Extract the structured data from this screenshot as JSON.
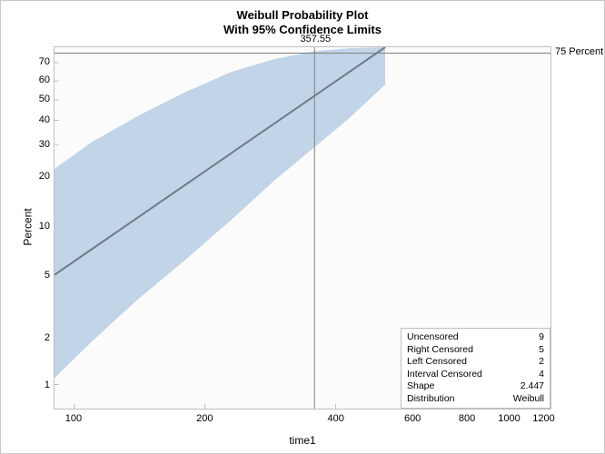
{
  "title_line1": "Weibull Probability Plot",
  "title_line2": "With 95% Confidence Limits",
  "xlabel": "time1",
  "ylabel": "Percent",
  "chart": {
    "type": "probability-plot",
    "background_color": "#fbfbfb",
    "frame_color": "#bfbfbf",
    "outer_frame_color": "#c8c8c8",
    "title_fontsize": 13,
    "label_fontsize": 12,
    "tick_fontsize": 11,
    "x_axis": {
      "scale": "log",
      "min": 90,
      "max": 1250,
      "ticks": [
        100,
        200,
        400,
        600,
        800,
        1000,
        1200
      ]
    },
    "y_axis": {
      "scale": "weibull-qq",
      "min_pct": 0.7,
      "max_pct": 78,
      "ticks_pct": [
        1,
        2,
        5,
        10,
        20,
        30,
        40,
        50,
        60,
        70
      ]
    },
    "reference": {
      "pct": 75,
      "x_value": 357.55,
      "x_label": "357.55",
      "pct_label": "75 Percent",
      "line_color": "#808080",
      "line_width": 1
    },
    "fit_line": {
      "x": [
        90,
        520
      ],
      "pct": [
        5.0,
        78.0
      ],
      "color": "#6f7a87",
      "width": 2
    },
    "confidence_band": {
      "x": [
        90,
        110,
        140,
        180,
        230,
        290,
        357.55,
        430,
        520
      ],
      "lo_pct": [
        1.1,
        1.9,
        3.5,
        6.2,
        11,
        19,
        29,
        41,
        58
      ],
      "hi_pct": [
        22,
        31,
        42,
        54,
        65,
        72,
        76,
        77.5,
        78
      ],
      "fill": "#bcd0e6",
      "opacity": 0.92
    },
    "legend": {
      "rows": [
        {
          "label": "Uncensored",
          "value": "9"
        },
        {
          "label": "Right Censored",
          "value": "5"
        },
        {
          "label": "Left Censored",
          "value": "2"
        },
        {
          "label": "Interval Censored",
          "value": "4"
        },
        {
          "label": "Shape",
          "value": "2.447"
        },
        {
          "label": "Distribution",
          "value": "Weibull"
        }
      ]
    }
  }
}
